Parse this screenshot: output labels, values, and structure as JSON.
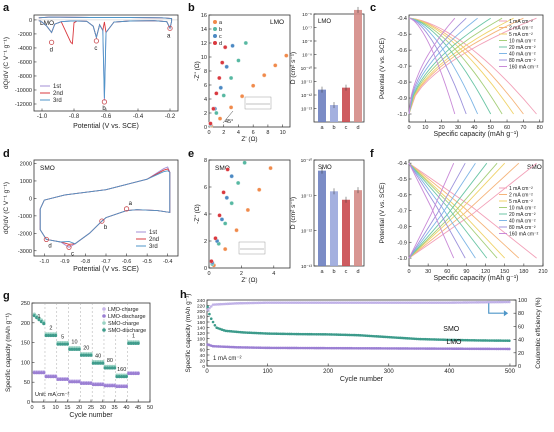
{
  "panels": {
    "a": {
      "letter": "a",
      "tag": "LMO",
      "xlabel": "Potential (V vs. SCE)",
      "ylabel": "dQ/dV (C V⁻¹ g⁻¹)",
      "xticks": [
        "-1.0",
        "-0.8",
        "-0.6",
        "-0.4",
        "-0.2"
      ],
      "yticks": [
        "0",
        "-2000",
        "-4000",
        "-6000",
        "-8000",
        "-10000",
        "-12000"
      ],
      "legend": [
        "1st",
        "2nd",
        "3rd"
      ],
      "points": [
        "a",
        "b",
        "c",
        "d"
      ]
    },
    "b": {
      "letter": "b",
      "tag": "LMO",
      "xlabel": "Z' (Ω)",
      "ylabel": "-Z'' (Ω)",
      "xticks": [
        "0",
        "2",
        "4",
        "6",
        "8",
        "10"
      ],
      "yticks": [
        "0",
        "2",
        "4",
        "6",
        "8",
        "10",
        "12",
        "14",
        "16"
      ],
      "legend": [
        "a",
        "b",
        "c",
        "d"
      ],
      "angle": "45°",
      "inset_ylabel": "D (cm² s⁻¹)",
      "inset_tag": "LMO",
      "inset_yticks": [
        "10⁻¹³",
        "10⁻¹²",
        "10⁻¹¹",
        "10⁻¹⁰",
        "10⁻⁹",
        "10⁻⁸",
        "10⁻⁷",
        "10⁻⁶"
      ],
      "inset_xticks": [
        "a",
        "b",
        "c",
        "d"
      ]
    },
    "c": {
      "letter": "c",
      "xlabel": "Specific capacity (mAh g⁻¹)",
      "ylabel": "Potential (V vs. SCE)",
      "xticks": [
        "0",
        "10",
        "20",
        "30",
        "40",
        "50",
        "60",
        "70",
        "80"
      ],
      "yticks": [
        "-0.4",
        "-0.5",
        "-0.6",
        "-0.7",
        "-0.8",
        "-0.9",
        "-1.0"
      ],
      "legend": [
        "1 mA cm⁻²",
        "2 mA cm⁻²",
        "5 mA cm⁻²",
        "10 mA cm⁻²",
        "20 mA cm⁻²",
        "40 mA cm⁻²",
        "80 mA cm⁻²",
        "160 mA cm⁻²"
      ]
    },
    "d": {
      "letter": "d",
      "tag": "SMO",
      "xlabel": "Potential (V vs. SCE)",
      "ylabel": "dQ/dV (C V⁻¹ g⁻¹)",
      "xticks": [
        "-1.0",
        "-0.9",
        "-0.8",
        "-0.7",
        "-0.6",
        "-0.5",
        "-0.4"
      ],
      "yticks": [
        "2000",
        "1000",
        "0",
        "-1000",
        "-2000",
        "-3000"
      ],
      "legend": [
        "1st",
        "2nd",
        "3rd"
      ],
      "points": [
        "a",
        "b",
        "c",
        "d"
      ]
    },
    "e": {
      "letter": "e",
      "tag": "SMO",
      "xlabel": "Z' (Ω)",
      "ylabel": "-Z'' (Ω)",
      "xticks": [
        "0",
        "2",
        "4"
      ],
      "yticks": [
        "0",
        "2",
        "4",
        "6",
        "8"
      ],
      "inset_tag": "SMO",
      "inset_yticks": [
        "10⁻¹³",
        "10⁻¹²",
        "10⁻¹¹",
        "10⁻¹⁰"
      ],
      "inset_xticks": [
        "a",
        "b",
        "c",
        "d"
      ]
    },
    "f": {
      "letter": "f",
      "tag": "SMO",
      "xlabel": "Specific capacity (mAh g⁻¹)",
      "ylabel": "Potential (V vs. SCE)",
      "xticks": [
        "0",
        "30",
        "60",
        "90",
        "120",
        "150",
        "180",
        "210"
      ],
      "yticks": [
        "-0.4",
        "-0.5",
        "-0.6",
        "-0.7",
        "-0.8",
        "-0.9",
        "-1.0"
      ],
      "legend": [
        "1 mA cm⁻²",
        "2 mA cm⁻²",
        "5 mA cm⁻²",
        "10 mA cm⁻²",
        "20 mA cm⁻²",
        "40 mA cm⁻²",
        "80 mA cm⁻²",
        "160 mA cm⁻²"
      ]
    },
    "g": {
      "letter": "g",
      "xlabel": "Cycle number",
      "ylabel": "Specific capacity (mAh g⁻¹)",
      "xticks": [
        "0",
        "5",
        "10",
        "15",
        "20",
        "25",
        "30",
        "35",
        "40",
        "45",
        "50"
      ],
      "yticks": [
        "0",
        "50",
        "100",
        "150",
        "200",
        "250"
      ],
      "legend": [
        "LMO-charge",
        "LMO-discharge",
        "SMO-charge",
        "SMO-discharge"
      ],
      "unit_note": "Unit: mA cm⁻²",
      "rate_labels": [
        "1",
        "2",
        "5",
        "10",
        "20",
        "40",
        "80",
        "160",
        "1"
      ]
    },
    "h": {
      "letter": "h",
      "xlabel": "Cycle number",
      "ylabel": "Specific capacity (mAh g⁻¹)",
      "y2label": "Coulombic efficiency (%)",
      "xticks": [
        "0",
        "100",
        "200",
        "300",
        "400",
        "500"
      ],
      "yticks": [
        "0",
        "20",
        "40",
        "60",
        "80",
        "100",
        "120",
        "140",
        "160",
        "180",
        "200",
        "220",
        "240"
      ],
      "y2ticks": [
        "0",
        "20",
        "40",
        "60",
        "80",
        "100"
      ],
      "smo_label": "SMO",
      "lmo_label": "LMO",
      "rate_note": "1 mA cm⁻²"
    }
  },
  "chart_data": [
    {
      "panel": "a",
      "type": "line",
      "title": "LMO",
      "xlabel": "Potential (V vs. SCE)",
      "ylabel": "dQ/dV (C V⁻¹ g⁻¹)",
      "xlim": [
        -1.05,
        -0.15
      ],
      "ylim": [
        -13000,
        700
      ],
      "series": [
        {
          "name": "1st",
          "color": "#a38fd6"
        },
        {
          "name": "2nd",
          "color": "#d9393f"
        },
        {
          "name": "3rd",
          "color": "#4f96c8"
        }
      ],
      "peaks": [
        {
          "label": "a",
          "x": -0.2,
          "y": -1200
        },
        {
          "name": "b",
          "label": "b",
          "x": -0.61,
          "y": -11700
        },
        {
          "label": "c",
          "x": -0.66,
          "y": -3000
        },
        {
          "label": "d",
          "x": -0.94,
          "y": -3200
        }
      ]
    },
    {
      "panel": "b",
      "type": "scatter",
      "title": "LMO",
      "xlabel": "Z' (Ω)",
      "ylabel": "-Z'' (Ω)",
      "xlim": [
        0,
        11
      ],
      "ylim": [
        0,
        16
      ],
      "series": [
        {
          "name": "a",
          "color": "#f08a4b",
          "x": [
            0.3,
            1.5,
            3,
            4.5,
            6,
            7.5,
            9,
            10.5
          ],
          "y": [
            0.2,
            1.2,
            2.8,
            4.4,
            5.9,
            7.4,
            8.8,
            10.2
          ]
        },
        {
          "name": "b",
          "color": "#57b8a2",
          "x": [
            0.2,
            1,
            2,
            3,
            4,
            5
          ],
          "y": [
            0.3,
            2,
            4.5,
            7,
            9.5,
            12
          ]
        },
        {
          "name": "c",
          "color": "#4c89c3",
          "x": [
            0.2,
            0.8,
            1.6,
            2.4,
            3.2
          ],
          "y": [
            0.4,
            2.6,
            5.6,
            8.6,
            11.6
          ]
        },
        {
          "name": "d",
          "color": "#d9393f",
          "x": [
            0.2,
            0.6,
            1,
            1.4,
            1.8,
            2.2
          ],
          "y": [
            0.5,
            2.6,
            4.8,
            7,
            9.2,
            11.4
          ]
        }
      ]
    },
    {
      "panel": "b-inset",
      "type": "bar",
      "title": "LMO",
      "ylabel": "D (cm² s⁻¹)",
      "categories": [
        "a",
        "b",
        "c",
        "d"
      ],
      "values": [
        2.5e-12,
        1.8e-13,
        3.5e-12,
        2e-06
      ],
      "yscale": "log",
      "ylim": [
        1e-14,
        1e-06
      ],
      "colors": [
        "#6d7fc0",
        "#9aa7dc",
        "#c94a4f",
        "#d48b86"
      ]
    },
    {
      "panel": "c",
      "type": "line",
      "title": "",
      "xlabel": "Specific capacity (mAh g⁻¹)",
      "ylabel": "Potential (V vs. SCE)",
      "xlim": [
        0,
        82
      ],
      "ylim": [
        -1.05,
        -0.38
      ],
      "series": [
        {
          "name": "1 mA cm⁻²",
          "color": "#f2a0b8",
          "capacity": 78
        },
        {
          "name": "2 mA cm⁻²",
          "color": "#f5b47a",
          "capacity": 70
        },
        {
          "name": "5 mA cm⁻²",
          "color": "#f0d36a",
          "capacity": 64
        },
        {
          "name": "10 mA cm⁻²",
          "color": "#a6cf7a",
          "capacity": 57
        },
        {
          "name": "20 mA cm⁻²",
          "color": "#6cc6a6",
          "capacity": 50
        },
        {
          "name": "40 mA cm⁻²",
          "color": "#7fb6e6",
          "capacity": 42
        },
        {
          "name": "80 mA cm⁻²",
          "color": "#9d92dc",
          "capacity": 35
        },
        {
          "name": "160 mA cm⁻²",
          "color": "#c98ad8",
          "capacity": 28
        }
      ]
    },
    {
      "panel": "d",
      "type": "line",
      "title": "SMO",
      "xlabel": "Potential (V vs. SCE)",
      "ylabel": "dQ/dV (C V⁻¹ g⁻¹)",
      "xlim": [
        -1.05,
        -0.35
      ],
      "ylim": [
        -3300,
        2200
      ],
      "series": [
        {
          "name": "1st",
          "color": "#a38fd6"
        },
        {
          "name": "2nd",
          "color": "#d9393f"
        },
        {
          "name": "3rd",
          "color": "#4f96c8"
        }
      ],
      "peaks": [
        {
          "label": "a",
          "x": -0.6,
          "y": -600
        },
        {
          "label": "b",
          "x": -0.72,
          "y": -1300
        },
        {
          "label": "c",
          "x": -0.88,
          "y": -2800
        },
        {
          "label": "d",
          "x": -0.99,
          "y": -2350
        }
      ]
    },
    {
      "panel": "e",
      "type": "scatter",
      "title": "SMO",
      "xlabel": "Z' (Ω)",
      "ylabel": "-Z'' (Ω)",
      "xlim": [
        0,
        5
      ],
      "ylim": [
        0,
        8
      ],
      "series": [
        {
          "name": "a",
          "color": "#f08a4b",
          "x": [
            0.3,
            1,
            1.7,
            2.4,
            3.1,
            3.8
          ],
          "y": [
            0.2,
            1.4,
            2.8,
            4.3,
            5.8,
            7.4
          ]
        },
        {
          "name": "b",
          "color": "#57b8a2",
          "x": [
            0.2,
            0.6,
            1,
            1.4,
            1.8,
            2.2
          ],
          "y": [
            0.3,
            1.8,
            3.3,
            4.8,
            6.3,
            7.8
          ]
        },
        {
          "name": "c",
          "color": "#4c89c3",
          "x": [
            0.2,
            0.5,
            0.8,
            1.1,
            1.4
          ],
          "y": [
            0.4,
            2,
            3.6,
            5.2,
            6.8
          ]
        },
        {
          "name": "d",
          "color": "#d9393f",
          "x": [
            0.15,
            0.4,
            0.65,
            0.9,
            1.15
          ],
          "y": [
            0.5,
            2.2,
            3.9,
            5.6,
            7.3
          ]
        }
      ]
    },
    {
      "panel": "e-inset",
      "type": "bar",
      "title": "SMO",
      "categories": [
        "a",
        "b",
        "c",
        "d"
      ],
      "values": [
        5e-11,
        1.3e-11,
        7.5e-12,
        1.4e-11
      ],
      "yscale": "log",
      "ylim": [
        1e-13,
        1e-10
      ],
      "colors": [
        "#6d7fc0",
        "#9aa7dc",
        "#c94a4f",
        "#d48b86"
      ]
    },
    {
      "panel": "f",
      "type": "line",
      "title": "SMO",
      "xlabel": "Specific capacity (mAh g⁻¹)",
      "ylabel": "Potential (V vs. SCE)",
      "xlim": [
        0,
        210
      ],
      "ylim": [
        -1.05,
        -0.38
      ],
      "series": [
        {
          "name": "1 mA cm⁻²",
          "color": "#f2a0b8",
          "capacity": 200
        },
        {
          "name": "2 mA cm⁻²",
          "color": "#f5b47a",
          "capacity": 172
        },
        {
          "name": "5 mA cm⁻²",
          "color": "#f0d36a",
          "capacity": 150
        },
        {
          "name": "10 mA cm⁻²",
          "color": "#a6cf7a",
          "capacity": 138
        },
        {
          "name": "20 mA cm⁻²",
          "color": "#6cc6a6",
          "capacity": 122
        },
        {
          "name": "40 mA cm⁻²",
          "color": "#7fb6e6",
          "capacity": 104
        },
        {
          "name": "80 mA cm⁻²",
          "color": "#9d92dc",
          "capacity": 88
        },
        {
          "name": "160 mA cm⁻²",
          "color": "#c98ad8",
          "capacity": 70
        }
      ]
    },
    {
      "panel": "g",
      "type": "scatter",
      "title": "",
      "xlabel": "Cycle number",
      "ylabel": "Specific capacity (mAh g⁻¹)",
      "xlim": [
        0,
        50
      ],
      "ylim": [
        0,
        250
      ],
      "segments": {
        "boundaries": [
          5.5,
          10.5,
          15.5,
          20.5,
          25.5,
          30.5,
          35.5,
          40.5
        ],
        "LMO": [
          75,
          65,
          58,
          52,
          48,
          45,
          42,
          40,
          73
        ],
        "SMO": [
          200,
          170,
          148,
          135,
          120,
          100,
          88,
          66,
          150
        ]
      },
      "series": [
        {
          "name": "LMO-charge",
          "color": "#c7b5ea"
        },
        {
          "name": "LMO-discharge",
          "color": "#9b7fd3"
        },
        {
          "name": "SMO-charge",
          "color": "#9ad3c4"
        },
        {
          "name": "SMO-discharge",
          "color": "#3f9c8c"
        }
      ]
    },
    {
      "panel": "h",
      "type": "scatter",
      "title": "",
      "xlabel": "Cycle number",
      "ylabel": "Specific capacity (mAh g⁻¹)",
      "xlim": [
        0,
        510
      ],
      "ylim": [
        0,
        240
      ],
      "y2lim": [
        0,
        100
      ],
      "series": [
        {
          "name": "SMO",
          "color": "#3c9b8b",
          "x": [
            1,
            5,
            15,
            30,
            60,
            100,
            150,
            200,
            250,
            300,
            350,
            400,
            450,
            500
          ],
          "y": [
            215,
            180,
            140,
            128,
            122,
            118,
            116,
            115,
            112,
            105,
            98,
            95,
            93,
            92
          ]
        },
        {
          "name": "LMO",
          "color": "#9b7fd3",
          "x": [
            1,
            10,
            50,
            100,
            200,
            300,
            400,
            500
          ],
          "y": [
            78,
            72,
            68,
            66,
            65,
            64,
            63,
            62
          ]
        },
        {
          "name": "CE",
          "color": "#b8a8e4",
          "axis": "right",
          "x": [
            1,
            10,
            50,
            100,
            200,
            300,
            400,
            500
          ],
          "y": [
            85,
            93,
            95,
            96,
            96,
            96,
            96,
            97
          ]
        }
      ]
    }
  ]
}
